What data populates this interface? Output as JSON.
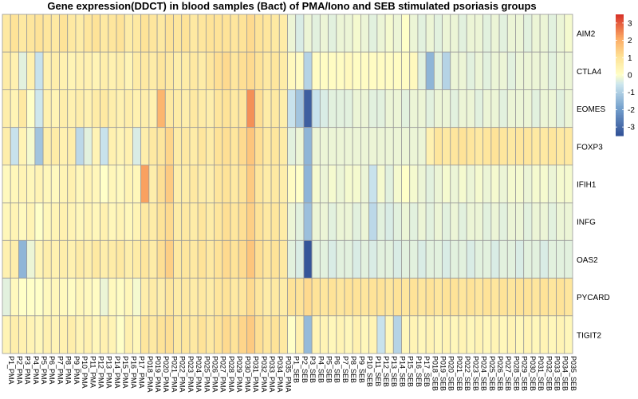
{
  "chart_data": {
    "type": "heatmap",
    "title": "Gene expression(DDCT) in blood samples (Bact) of PMA/Iono and SEB stimulated psoriasis groups",
    "rows": [
      "AIM2",
      "CTLA4",
      "EOMES",
      "FOXP3",
      "IFIH1",
      "INFG",
      "OAS2",
      "PYCARD",
      "TIGIT2"
    ],
    "columns": [
      "P1_PMA",
      "P2_PMA",
      "P3_PMA",
      "P4_PMA",
      "P5_PMA",
      "P6_PMA",
      "P7_PMA",
      "P8_PMA",
      "P9_PMA",
      "P10_PMA",
      "P11_PMA",
      "P12_PMA",
      "P13_PMA",
      "P14_PMA",
      "P15_PMA",
      "P16_PMA",
      "P17_PMA",
      "P018_PMA",
      "P019_PMA",
      "P020_PMA",
      "P021_PMA",
      "P022_PMA",
      "P023_PMA",
      "P024_PMA",
      "P025_PMA",
      "P026_PMA",
      "P027_PMA",
      "P028_PMA",
      "P029_PMA",
      "P030_PMA",
      "P031_PMA",
      "P032_PMA",
      "P033_PMA",
      "P034_PMA",
      "P035_PMA",
      "P1_SEB",
      "P2_SEB",
      "P3_SEB",
      "P4_SEB",
      "P5_SEB",
      "P6_SEB",
      "P7_SEB",
      "P8_SEB",
      "P9_SEB",
      "P10_SEB",
      "P11_SEB",
      "P12_SEB",
      "P13_SEB",
      "P14_SEB",
      "P15_SEB",
      "P16_SEB",
      "P17_SEB",
      "P018_SEB",
      "P019_SEB",
      "P020_SEB",
      "P021_SEB",
      "P022_SEB",
      "P023_SEB",
      "P024_SEB",
      "P025_SEB",
      "P026_SEB",
      "P027_SEB",
      "P028_SEB",
      "P029_SEB",
      "P030_SEB",
      "P031_SEB",
      "P032_SEB",
      "P033_SEB",
      "P034_SEB",
      "P035_SEB"
    ],
    "values": [
      [
        0.8,
        1,
        0.8,
        0.9,
        1,
        0.9,
        0.8,
        1,
        0.8,
        0.7,
        0.9,
        1,
        0.8,
        0.9,
        1,
        0.7,
        0.8,
        1,
        0.9,
        0.8,
        1,
        0.9,
        1,
        0.8,
        0.9,
        1,
        1,
        1,
        0.9,
        1,
        1.2,
        1,
        0.9,
        0.8,
        0.7,
        -0.2,
        -0.4,
        -0.2,
        -0.3,
        -0.2,
        -0.3,
        -0.2,
        -0.2,
        -0.1,
        -0.2,
        -0.3,
        -0.2,
        -0.1,
        -0.2,
        0,
        -0.2,
        -0.3,
        -0.2,
        -0.3,
        -0.2,
        -0.2,
        -0.3,
        -0.2,
        -0.2,
        -0.3,
        -0.2,
        -0.3,
        -0.2,
        -0.2,
        -0.3,
        -0.2,
        -0.2,
        -0.3,
        -0.2,
        -0.1
      ],
      [
        0.7,
        0.5,
        -0.3,
        0.5,
        -0.6,
        0.5,
        0.6,
        0.5,
        0.4,
        0.5,
        0.5,
        0.4,
        0.6,
        0.5,
        0.6,
        0.4,
        0.7,
        0.8,
        0.7,
        0.9,
        0.8,
        0.6,
        0.7,
        0.8,
        0.7,
        0.9,
        1.1,
        1.2,
        0.9,
        1.1,
        1.2,
        1,
        0.8,
        0.9,
        0.7,
        0.2,
        0.1,
        -0.9,
        0.1,
        0.1,
        0.1,
        0.1,
        0.2,
        0.1,
        0.1,
        0.1,
        0.1,
        0.1,
        0.1,
        0.1,
        0.2,
        -0.3,
        -1.5,
        -0.3,
        -0.9,
        -0.2,
        -0.2,
        -0.3,
        -0.2,
        -0.3,
        -0.2,
        -0.2,
        -0.3,
        -0.2,
        -0.2,
        -0.2,
        -0.2,
        -0.3,
        -0.2,
        -0.2
      ],
      [
        0.6,
        0.4,
        0.8,
        0,
        -0.5,
        0.5,
        0.4,
        0.6,
        0.5,
        0.6,
        0.5,
        0.7,
        0.8,
        0.6,
        0.5,
        0.6,
        0.5,
        0.6,
        0.5,
        1.9,
        0.8,
        0.7,
        0.6,
        0.8,
        0.7,
        0.6,
        0.9,
        1,
        0.8,
        0.9,
        2.4,
        1.1,
        0.7,
        0.8,
        0.6,
        -0.6,
        -1.2,
        -3.2,
        -0.6,
        -0.4,
        -0.3,
        -0.3,
        -0.3,
        -0.2,
        -0.2,
        -0.3,
        -0.3,
        -0.2,
        -0.2,
        -0.3,
        -0.2,
        -0.2,
        -0.3,
        -0.2,
        -0.2,
        -0.3,
        -0.2,
        -0.2,
        -0.3,
        -0.2,
        -0.2,
        -0.3,
        -0.2,
        -0.2,
        -0.2,
        -0.3,
        -0.2,
        -0.2,
        -0.3,
        -0.2
      ],
      [
        0.6,
        -0.6,
        0.4,
        -0.1,
        -1.2,
        0.6,
        0.7,
        0.5,
        0.6,
        -0.8,
        -0.3,
        0.4,
        -0.6,
        0.5,
        0.4,
        0.5,
        -0.4,
        0.6,
        0.8,
        0.9,
        1.3,
        0.7,
        0.8,
        0.7,
        0.9,
        0.7,
        1,
        1.1,
        0.9,
        1.2,
        1.6,
        1.1,
        0.8,
        0.9,
        0.7,
        -0.3,
        -0.2,
        -1.5,
        -0.2,
        -0.2,
        -0.2,
        -0.2,
        -0.2,
        -0.2,
        -0.2,
        -0.2,
        -0.2,
        -0.2,
        -0.2,
        -0.2,
        -0.2,
        -0.2,
        0.5,
        0.9,
        0.8,
        0.9,
        1,
        0.9,
        0.8,
        0.9,
        1,
        0.9,
        0.8,
        0.9,
        0.9,
        0.8,
        0.8,
        0.9,
        0.8,
        0.8
      ],
      [
        0.2,
        0.3,
        0.4,
        0.3,
        0.4,
        0.3,
        0.2,
        0.4,
        0.5,
        0.3,
        0.4,
        0.3,
        0,
        0.3,
        0.2,
        0.4,
        0.3,
        2.2,
        0.6,
        1.1,
        1.5,
        0.6,
        0.7,
        0.8,
        0.7,
        0.6,
        0.9,
        1,
        0.8,
        1,
        1.5,
        0.9,
        0.7,
        0.8,
        0.6,
        0.1,
        0,
        -1.5,
        -0.1,
        -0.2,
        -0.1,
        -0.2,
        -0.1,
        -0.1,
        -0.2,
        -0.6,
        -0.1,
        -0.3,
        -0.1,
        0,
        -0.1,
        -0.2,
        -0.3,
        -0.2,
        -0.1,
        -0.2,
        -0.1,
        -0.2,
        -0.1,
        -0.2,
        -0.1,
        -0.2,
        -0.1,
        -0.1,
        -0.2,
        -0.1,
        -0.1,
        -0.2,
        -0.1,
        -0.1
      ],
      [
        0.3,
        0.4,
        0.2,
        0.4,
        0,
        0.3,
        0.4,
        0.5,
        0.4,
        0.3,
        0.4,
        0.3,
        0.5,
        0.3,
        0.4,
        0.3,
        0.4,
        0.8,
        0.7,
        1,
        1.2,
        0.7,
        0.8,
        0.7,
        0.9,
        0.7,
        0.9,
        1.1,
        0.9,
        1.1,
        1.4,
        1,
        0.8,
        0.9,
        0.7,
        -0.2,
        -0.3,
        -1.3,
        -0.2,
        -0.2,
        -0.3,
        -0.2,
        -0.2,
        -0.3,
        -0.2,
        -0.8,
        -0.3,
        -0.4,
        -0.3,
        -0.2,
        -0.3,
        -0.2,
        -0.3,
        -0.2,
        -0.3,
        -0.2,
        -0.3,
        -0.2,
        -0.2,
        -0.3,
        -0.2,
        -0.3,
        -0.2,
        -0.2,
        -0.3,
        -0.2,
        -0.2,
        -0.3,
        -0.2,
        -0.2
      ],
      [
        0.5,
        0.6,
        -1.5,
        -0.2,
        0.4,
        0.6,
        0.5,
        0.6,
        0.5,
        0.7,
        0.6,
        0.8,
        0.6,
        0.7,
        0.8,
        0.6,
        0.7,
        0.9,
        0.7,
        1.1,
        1.4,
        0.8,
        0.9,
        0.8,
        1,
        0.8,
        1,
        1.2,
        1,
        1.2,
        1.6,
        1.1,
        0.9,
        1,
        0.8,
        -0.3,
        -0.4,
        -3.4,
        -0.3,
        -0.3,
        -0.4,
        -0.3,
        -0.3,
        -0.4,
        -0.3,
        -0.4,
        -0.3,
        -0.3,
        -0.4,
        -0.3,
        -0.3,
        -0.4,
        -0.3,
        -0.3,
        -0.4,
        -0.3,
        -0.3,
        -0.4,
        -0.3,
        -0.3,
        -0.4,
        -0.3,
        -0.3,
        -0.4,
        -0.3,
        -0.3,
        -0.4,
        -0.3,
        -0.3,
        -0.3
      ],
      [
        -0.3,
        0.2,
        0,
        0,
        0,
        0.2,
        0.3,
        0.2,
        0.1,
        0.3,
        0.2,
        0.1,
        -0.2,
        0.2,
        0.1,
        0.3,
        -0.1,
        0.6,
        0.7,
        0.6,
        0.9,
        0.7,
        0.8,
        0.7,
        0.8,
        0.7,
        0.9,
        1,
        0.8,
        0.9,
        1.2,
        0.9,
        0.7,
        0.8,
        0.7,
        1,
        1,
        1.2,
        1,
        0.9,
        1,
        0.9,
        1,
        1,
        0.9,
        1,
        1,
        0.9,
        1,
        0.9,
        1,
        0.9,
        1,
        0.9,
        1,
        1,
        0.9,
        1,
        0.9,
        1,
        0.9,
        1,
        0.9,
        1,
        1,
        0.9,
        1,
        0.9,
        1,
        0.9
      ],
      [
        0.4,
        0.6,
        0.5,
        0.4,
        0.3,
        0.5,
        0.4,
        0.5,
        0.6,
        0.4,
        0.5,
        0.3,
        0.5,
        0.4,
        0,
        0.5,
        0.3,
        0.9,
        0.8,
        1,
        1.1,
        0.8,
        0.9,
        0.8,
        1,
        0.8,
        1,
        1.2,
        1,
        1.3,
        1.5,
        1.1,
        0.9,
        1,
        0.8,
        0,
        0.5,
        -1.4,
        0.4,
        0.4,
        0.3,
        0.4,
        0.3,
        0.5,
        0.3,
        0.4,
        -0.6,
        0.3,
        -0.9,
        0.3,
        0.4,
        0.3,
        0.4,
        0.3,
        0.4,
        0.3,
        0.4,
        0.3,
        0.4,
        0.3,
        0.4,
        0.3,
        0.4,
        0.3,
        0.4,
        0.3,
        0.4,
        0.3,
        0.4,
        0.3
      ]
    ],
    "colorbar": {
      "min": -3.5,
      "max": 3.5,
      "ticks": [
        3,
        2,
        1,
        0,
        -1,
        -2,
        -3
      ]
    },
    "colors": {
      "low": "#3a5fa0",
      "mid": "#ffffbf",
      "high": "#d73027"
    }
  }
}
